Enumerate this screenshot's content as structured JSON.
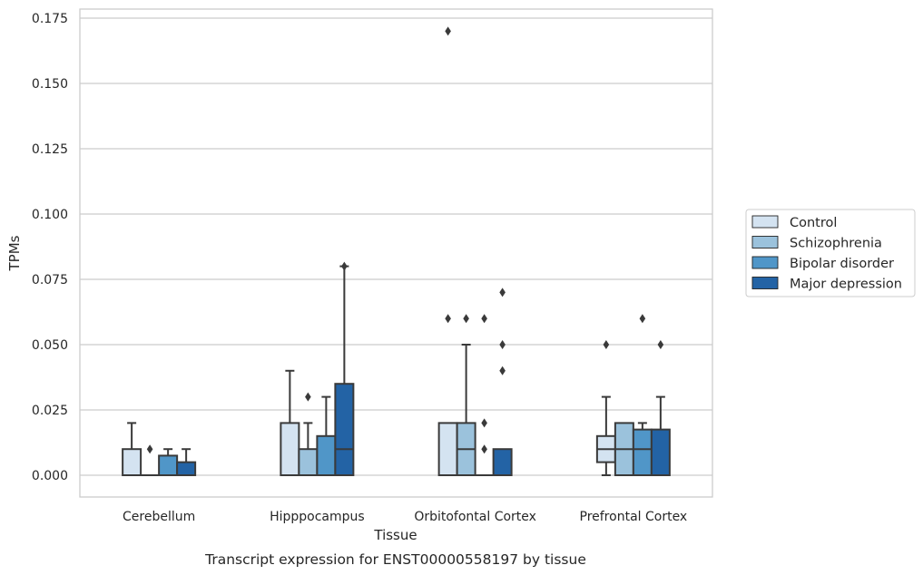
{
  "caption": "Transcript expression for ENST00000558197 by tissue",
  "chart_data": {
    "type": "boxplot",
    "xlabel": "Tissue",
    "ylabel": "TPMs",
    "ylim": [
      -0.0085,
      0.179
    ],
    "yticks": [
      0.0,
      0.025,
      0.05,
      0.075,
      0.1,
      0.125,
      0.15,
      0.175
    ],
    "ytick_labels": [
      "0.000",
      "0.025",
      "0.050",
      "0.075",
      "0.100",
      "0.125",
      "0.150",
      "0.175"
    ],
    "grid": "horizontal",
    "legend_position": "right-center",
    "categories": [
      "Cerebellum",
      "Hipppocampus",
      "Orbitofontal Cortex",
      "Prefrontal Cortex"
    ],
    "series": [
      {
        "name": "Control",
        "color": "#d4e3f1",
        "boxes": [
          {
            "q1": 0.0,
            "median": 0.0,
            "q3": 0.01,
            "whisker_low": 0.0,
            "whisker_high": 0.02,
            "outliers": []
          },
          {
            "q1": 0.0,
            "median": 0.0,
            "q3": 0.02,
            "whisker_low": 0.0,
            "whisker_high": 0.04,
            "outliers": []
          },
          {
            "q1": 0.0,
            "median": 0.0,
            "q3": 0.02,
            "whisker_low": 0.0,
            "whisker_high": 0.02,
            "outliers": [
              0.06,
              0.17
            ]
          },
          {
            "q1": 0.005,
            "median": 0.01,
            "q3": 0.015,
            "whisker_low": 0.0,
            "whisker_high": 0.03,
            "outliers": [
              0.05
            ]
          }
        ]
      },
      {
        "name": "Schizophrenia",
        "color": "#9bc2dc",
        "boxes": [
          {
            "q1": 0.0,
            "median": 0.0,
            "q3": 0.0,
            "whisker_low": 0.0,
            "whisker_high": 0.0,
            "outliers": [
              0.01
            ]
          },
          {
            "q1": 0.0,
            "median": 0.0,
            "q3": 0.01,
            "whisker_low": 0.0,
            "whisker_high": 0.02,
            "outliers": [
              0.03
            ]
          },
          {
            "q1": 0.0,
            "median": 0.01,
            "q3": 0.02,
            "whisker_low": 0.0,
            "whisker_high": 0.05,
            "outliers": [
              0.06
            ]
          },
          {
            "q1": 0.0,
            "median": 0.01,
            "q3": 0.02,
            "whisker_low": 0.0,
            "whisker_high": 0.02,
            "outliers": []
          }
        ]
      },
      {
        "name": "Bipolar disorder",
        "color": "#5096c8",
        "boxes": [
          {
            "q1": 0.0,
            "median": 0.0,
            "q3": 0.0075,
            "whisker_low": 0.0,
            "whisker_high": 0.01,
            "outliers": []
          },
          {
            "q1": 0.0,
            "median": 0.0,
            "q3": 0.015,
            "whisker_low": 0.0,
            "whisker_high": 0.03,
            "outliers": []
          },
          {
            "q1": 0.0,
            "median": 0.0,
            "q3": 0.0,
            "whisker_low": 0.0,
            "whisker_high": 0.0,
            "outliers": [
              0.01,
              0.02,
              0.06
            ]
          },
          {
            "q1": 0.0,
            "median": 0.01,
            "q3": 0.0175,
            "whisker_low": 0.0,
            "whisker_high": 0.02,
            "outliers": [
              0.06
            ]
          }
        ]
      },
      {
        "name": "Major depression",
        "color": "#2363a5",
        "boxes": [
          {
            "q1": 0.0,
            "median": 0.0,
            "q3": 0.005,
            "whisker_low": 0.0,
            "whisker_high": 0.01,
            "outliers": []
          },
          {
            "q1": 0.0,
            "median": 0.01,
            "q3": 0.035,
            "whisker_low": 0.0,
            "whisker_high": 0.08,
            "outliers": [
              0.08
            ]
          },
          {
            "q1": 0.0,
            "median": 0.0,
            "q3": 0.01,
            "whisker_low": 0.0,
            "whisker_high": 0.01,
            "outliers": [
              0.04,
              0.05,
              0.07
            ]
          },
          {
            "q1": 0.0,
            "median": 0.0,
            "q3": 0.0175,
            "whisker_low": 0.0,
            "whisker_high": 0.03,
            "outliers": [
              0.05
            ]
          }
        ]
      }
    ]
  }
}
